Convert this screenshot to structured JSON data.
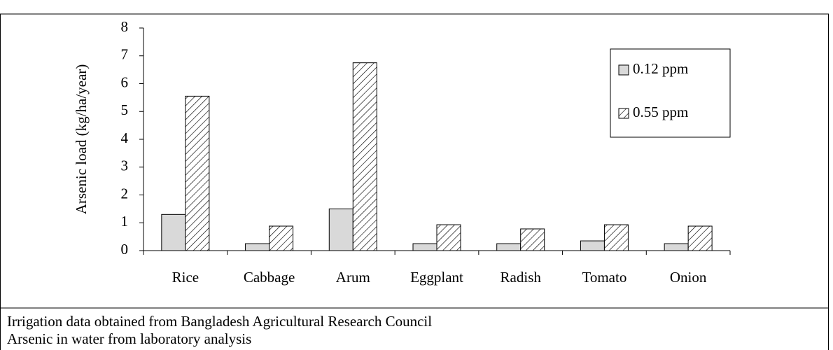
{
  "chart_data": {
    "type": "bar",
    "y_label": "Arsenic load (kg/ha/year)",
    "categories": [
      "Rice",
      "Cabbage",
      "Arum",
      "Eggplant",
      "Radish",
      "Tomato",
      "Onion"
    ],
    "series": [
      {
        "name": "0.12 ppm",
        "color": "#d9d9d9",
        "fill": "solid",
        "values": [
          1.3,
          0.25,
          1.5,
          0.25,
          0.25,
          0.35,
          0.25
        ]
      },
      {
        "name": "0.55 ppm",
        "color": "#ffffff",
        "fill": "hatch",
        "values": [
          5.55,
          0.88,
          6.75,
          0.93,
          0.78,
          0.93,
          0.88
        ]
      }
    ],
    "ylim": [
      0,
      8
    ],
    "yticks": [
      0,
      1,
      2,
      3,
      4,
      5,
      6,
      7,
      8
    ],
    "legend": "upper right"
  },
  "notes": [
    "Irrigation data obtained from Bangladesh Agricultural Research Council",
    "Arsenic in water from laboratory analysis"
  ]
}
